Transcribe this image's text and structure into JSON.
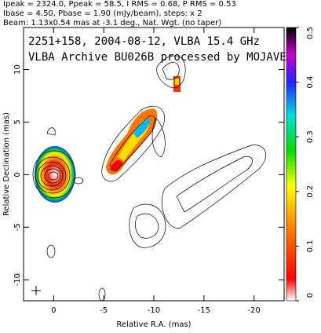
{
  "chart_data": {
    "type": "image",
    "header_lines": [
      "Ipeak = 2324.0, Ppeak = 58.5, I RMS = 0.68, P RMS = 0.53",
      "Ibase = 4.50, Pbase = 1.90 (mJy/beam), steps: x 2",
      "Beam: 1.13x0.54 mas at -3.1 deg., Nat. Wgt. (no taper)"
    ],
    "title": "2251+158, 2004-08-12, VLBA 15.4 GHz",
    "subtitle": "VLBA Archive BU026B processed by MOJAVE",
    "x_label": "Relative R.A. (mas)",
    "y_label": "Relative Declination (mas)",
    "xlim": [
      3,
      -23
    ],
    "xticks": [
      0,
      -5,
      -10,
      -15,
      -20
    ],
    "ylim": [
      -12,
      14
    ],
    "yticks": [
      -10,
      -5,
      0,
      5,
      10
    ],
    "colorbar_lim": [
      0,
      0.5
    ],
    "colorbar_ticks": [
      0,
      0.1,
      0.2,
      0.3,
      0.4,
      0.5
    ]
  }
}
